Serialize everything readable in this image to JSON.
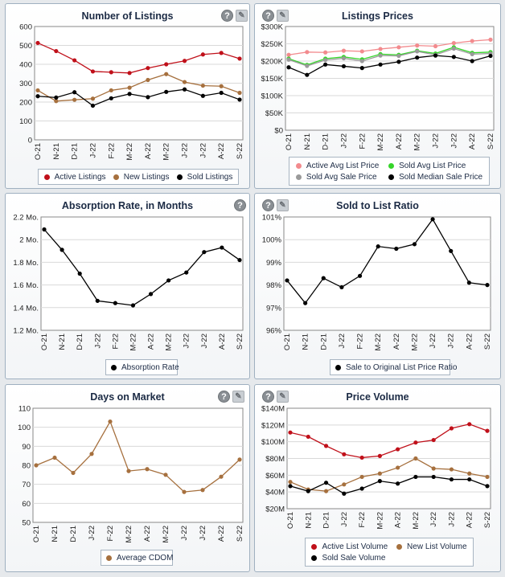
{
  "charts": [
    {
      "id": "listings",
      "title": "Number of Listings",
      "type": "line",
      "icons": [
        "help",
        "tool"
      ],
      "categories": [
        "O-21",
        "N-21",
        "D-21",
        "J-22",
        "F-22",
        "M-22",
        "A-22",
        "M-22",
        "J-22",
        "J-22",
        "A-22",
        "S-22"
      ],
      "ylim": [
        0,
        600
      ],
      "yticks": [
        0,
        100,
        200,
        300,
        400,
        500,
        600
      ],
      "ytick_labels": [
        "0",
        "100",
        "200",
        "300",
        "400",
        "500",
        "600"
      ],
      "series": [
        {
          "name": "Active Listings",
          "color": "#c0101a",
          "values": [
            513,
            470,
            421,
            362,
            358,
            354,
            380,
            400,
            418,
            452,
            460,
            430
          ]
        },
        {
          "name": "New Listings",
          "color": "#a6703e",
          "values": [
            262,
            205,
            212,
            218,
            262,
            276,
            317,
            348,
            306,
            287,
            284,
            249
          ]
        },
        {
          "name": "Sold Listings",
          "color": "#000000",
          "values": [
            231,
            224,
            252,
            181,
            220,
            243,
            226,
            254,
            267,
            233,
            249,
            213
          ]
        }
      ],
      "legend_cols": 3
    },
    {
      "id": "prices",
      "title": "Listings Prices",
      "type": "line",
      "icons": [
        "help",
        "tool"
      ],
      "categories": [
        "O-21",
        "N-21",
        "D-21",
        "J-22",
        "F-22",
        "M-22",
        "A-22",
        "M-22",
        "J-22",
        "J-22",
        "A-22",
        "S-22"
      ],
      "ylim": [
        0,
        300
      ],
      "yticks": [
        0,
        50,
        100,
        150,
        200,
        250,
        300
      ],
      "ytick_labels": [
        "$0",
        "$50K",
        "$100K",
        "$150K",
        "$200K",
        "$250K",
        "$300K"
      ],
      "series": [
        {
          "name": "Active Avg List Price",
          "color": "#f28b8e",
          "values": [
            218,
            226,
            225,
            230,
            228,
            235,
            240,
            245,
            243,
            252,
            258,
            262
          ]
        },
        {
          "name": "Sold Avg List Price",
          "color": "#36d52a",
          "values": [
            207,
            189,
            207,
            212,
            205,
            220,
            218,
            230,
            222,
            240,
            224,
            226
          ]
        },
        {
          "name": "Sold Avg Sale Price",
          "color": "#9a9a9a",
          "values": [
            204,
            186,
            203,
            208,
            200,
            216,
            215,
            228,
            218,
            236,
            220,
            222
          ]
        },
        {
          "name": "Sold Median Sale Price",
          "color": "#000000",
          "values": [
            182,
            160,
            190,
            185,
            180,
            190,
            198,
            210,
            216,
            212,
            200,
            215
          ]
        }
      ],
      "legend_cols": 2
    },
    {
      "id": "absorption",
      "title": "Absorption Rate, in Months",
      "type": "line",
      "icons": [
        "help"
      ],
      "categories": [
        "O-21",
        "N-21",
        "D-21",
        "J-22",
        "F-22",
        "M-22",
        "A-22",
        "M-22",
        "J-22",
        "J-22",
        "A-22",
        "S-22"
      ],
      "ylim": [
        1.2,
        2.2
      ],
      "yticks": [
        1.2,
        1.4,
        1.6,
        1.8,
        2.0,
        2.2
      ],
      "ytick_labels": [
        "1.2 Mo.",
        "1.4 Mo.",
        "1.6 Mo.",
        "1.8 Mo.",
        "2 Mo.",
        "2.2 Mo."
      ],
      "series": [
        {
          "name": "Absorption Rate",
          "color": "#000000",
          "values": [
            2.09,
            1.91,
            1.7,
            1.46,
            1.44,
            1.42,
            1.52,
            1.64,
            1.71,
            1.89,
            1.93,
            1.82
          ]
        }
      ],
      "legend_cols": 1
    },
    {
      "id": "ratio",
      "title": "Sold to List Ratio",
      "type": "line",
      "icons": [
        "help",
        "tool"
      ],
      "categories": [
        "O-21",
        "N-21",
        "D-21",
        "J-22",
        "F-22",
        "M-22",
        "A-22",
        "M-22",
        "J-22",
        "J-22",
        "A-22",
        "S-22"
      ],
      "ylim": [
        96,
        101
      ],
      "yticks": [
        96,
        97,
        98,
        99,
        100,
        101
      ],
      "ytick_labels": [
        "96%",
        "97%",
        "98%",
        "99%",
        "100%",
        "101%"
      ],
      "series": [
        {
          "name": "Sale to Original List Price Ratio",
          "color": "#000000",
          "values": [
            98.2,
            97.2,
            98.3,
            97.9,
            98.4,
            99.7,
            99.6,
            99.8,
            100.9,
            99.5,
            98.1,
            98.0
          ]
        }
      ],
      "legend_cols": 1
    },
    {
      "id": "dom",
      "title": "Days on Market",
      "type": "line",
      "icons": [
        "help",
        "tool"
      ],
      "categories": [
        "O-21",
        "N-21",
        "D-21",
        "J-22",
        "F-22",
        "M-22",
        "A-22",
        "M-22",
        "J-22",
        "J-22",
        "A-22",
        "S-22"
      ],
      "ylim": [
        50,
        110
      ],
      "yticks": [
        50,
        60,
        70,
        80,
        90,
        100,
        110
      ],
      "ytick_labels": [
        "50",
        "60",
        "70",
        "80",
        "90",
        "100",
        "110"
      ],
      "series": [
        {
          "name": "Average CDOM",
          "color": "#a6703e",
          "values": [
            80,
            84,
            76,
            86,
            103,
            77,
            78,
            75,
            66,
            67,
            74,
            83
          ]
        }
      ],
      "legend_cols": 1
    },
    {
      "id": "volume",
      "title": "Price Volume",
      "type": "line",
      "icons": [
        "help",
        "tool"
      ],
      "categories": [
        "O-21",
        "N-21",
        "D-21",
        "J-22",
        "F-22",
        "M-22",
        "A-22",
        "M-22",
        "J-22",
        "J-22",
        "A-22",
        "S-22"
      ],
      "ylim": [
        20,
        140
      ],
      "yticks": [
        20,
        40,
        60,
        80,
        100,
        120,
        140
      ],
      "ytick_labels": [
        "$20M",
        "$40M",
        "$60M",
        "$80M",
        "$100M",
        "$120M",
        "$140M"
      ],
      "series": [
        {
          "name": "Active List Volume",
          "color": "#c0101a",
          "values": [
            111,
            106,
            95,
            85,
            81,
            83,
            91,
            99,
            102,
            116,
            121,
            113
          ]
        },
        {
          "name": "New List Volume",
          "color": "#a6703e",
          "values": [
            52,
            43,
            41,
            49,
            58,
            62,
            69,
            80,
            68,
            67,
            62,
            58
          ]
        },
        {
          "name": "Sold Sale Volume",
          "color": "#000000",
          "values": [
            47,
            41,
            51,
            38,
            44,
            53,
            50,
            58,
            58,
            55,
            55,
            47
          ]
        }
      ],
      "legend_cols": 2
    }
  ]
}
